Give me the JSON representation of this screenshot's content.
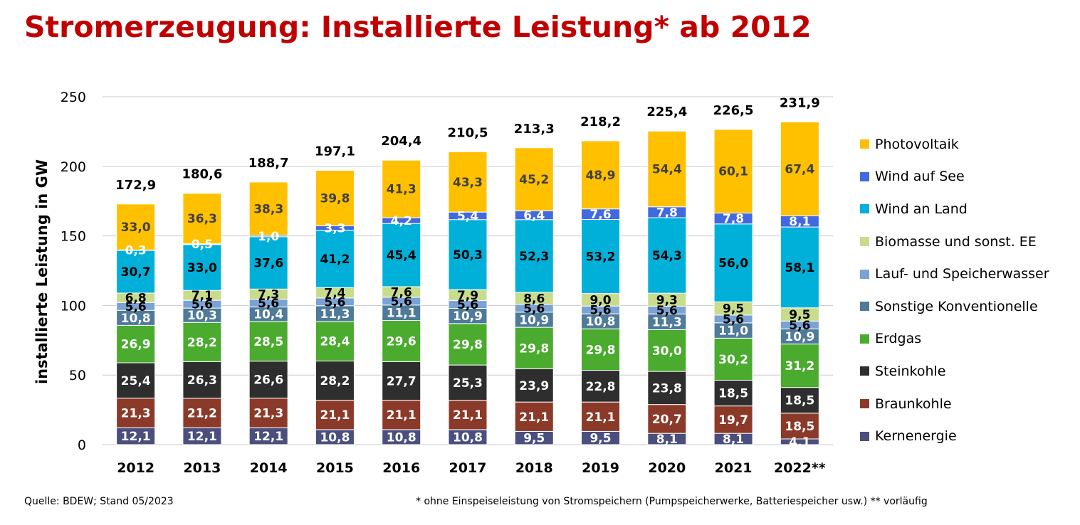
{
  "page": {
    "title": "Stromerzeugung: Installierte Leistung* ab 2012",
    "source": "Quelle: BDEW; Stand 05/2023",
    "footnote": "* ohne Einspeiseleistung von Stromspeichern (Pumpspeicherwerke, Batteriespeicher usw.)  ** vorläufig"
  },
  "chart_data": {
    "type": "bar",
    "stacked": true,
    "title": "Stromerzeugung: Installierte Leistung* ab 2012",
    "ylabel": "installierte Leistung in GW",
    "xlabel": "",
    "ylim": [
      0,
      250
    ],
    "yticks": [
      0,
      50,
      100,
      150,
      200,
      250
    ],
    "ytick_labels": [
      "0",
      "50",
      "100",
      "150",
      "200",
      "250"
    ],
    "grid": true,
    "legend_position": "right",
    "categories": [
      "2012",
      "2013",
      "2014",
      "2015",
      "2016",
      "2017",
      "2018",
      "2019",
      "2020",
      "2021",
      "2022**"
    ],
    "totals": [
      172.9,
      180.6,
      188.7,
      197.1,
      204.4,
      210.5,
      213.3,
      218.2,
      225.4,
      226.5,
      231.9
    ],
    "total_labels": [
      "172,9",
      "180,6",
      "188,7",
      "197,1",
      "204,4",
      "210,5",
      "213,3",
      "218,2",
      "225,4",
      "226,5",
      "231,9"
    ],
    "series": [
      {
        "name": "Kernenergie",
        "color": "#4a4f7e",
        "label_color": "#ffffff",
        "values": [
          12.1,
          12.1,
          12.1,
          10.8,
          10.8,
          10.8,
          9.5,
          9.5,
          8.1,
          8.1,
          4.1
        ],
        "labels": [
          "12,1",
          "12,1",
          "12,1",
          "10,8",
          "10,8",
          "10,8",
          "9,5",
          "9,5",
          "8,1",
          "8,1",
          "4,1"
        ]
      },
      {
        "name": "Braunkohle",
        "color": "#8b3a2a",
        "label_color": "#ffffff",
        "values": [
          21.3,
          21.2,
          21.3,
          21.1,
          21.1,
          21.1,
          21.1,
          21.1,
          20.7,
          19.7,
          18.5
        ],
        "labels": [
          "21,3",
          "21,2",
          "21,3",
          "21,1",
          "21,1",
          "21,1",
          "21,1",
          "21,1",
          "20,7",
          "19,7",
          "18,5"
        ]
      },
      {
        "name": "Steinkohle",
        "color": "#2e2e2e",
        "label_color": "#ffffff",
        "values": [
          25.4,
          26.3,
          26.6,
          28.2,
          27.7,
          25.3,
          23.9,
          22.8,
          23.8,
          18.5,
          18.5
        ],
        "labels": [
          "25,4",
          "26,3",
          "26,6",
          "28,2",
          "27,7",
          "25,3",
          "23,9",
          "22,8",
          "23,8",
          "18,5",
          "18,5"
        ]
      },
      {
        "name": "Erdgas",
        "color": "#4aab2e",
        "label_color": "#ffffff",
        "values": [
          26.9,
          28.2,
          28.5,
          28.4,
          29.6,
          29.8,
          29.8,
          29.8,
          30.0,
          30.2,
          31.2
        ],
        "labels": [
          "26,9",
          "28,2",
          "28,5",
          "28,4",
          "29,6",
          "29,8",
          "29,8",
          "29,8",
          "30,0",
          "30,2",
          "31,2"
        ]
      },
      {
        "name": "Sonstige Konventionelle",
        "color": "#4f7a99",
        "label_color": "#ffffff",
        "values": [
          10.8,
          10.3,
          10.4,
          11.3,
          11.1,
          10.9,
          10.9,
          10.8,
          11.3,
          11.0,
          10.9
        ],
        "labels": [
          "10,8",
          "10,3",
          "10,4",
          "11,3",
          "11,1",
          "10,9",
          "10,9",
          "10,8",
          "11,3",
          "11,0",
          "10,9"
        ]
      },
      {
        "name": "Lauf- und Speicherwasser",
        "color": "#7aa2d4",
        "label_color": "#000000",
        "values": [
          5.6,
          5.6,
          5.6,
          5.6,
          5.6,
          5.6,
          5.6,
          5.6,
          5.6,
          5.6,
          5.6
        ],
        "labels": [
          "5,6",
          "5,6",
          "5,6",
          "5,6",
          "5,6",
          "5,6",
          "5,6",
          "5,6",
          "5,6",
          "5,6",
          "5,6"
        ]
      },
      {
        "name": "Biomasse und sonst. EE",
        "color": "#c8dc8c",
        "label_color": "#000000",
        "values": [
          6.8,
          7.1,
          7.3,
          7.4,
          7.6,
          7.9,
          8.6,
          9.0,
          9.3,
          9.5,
          9.5
        ],
        "labels": [
          "6,8",
          "7,1",
          "7,3",
          "7,4",
          "7,6",
          "7,9",
          "8,6",
          "9,0",
          "9,3",
          "9,5",
          "9,5"
        ]
      },
      {
        "name": "Wind an Land",
        "color": "#00b0d8",
        "label_color": "#000000",
        "values": [
          30.7,
          33.0,
          37.6,
          41.2,
          45.4,
          50.3,
          52.3,
          53.2,
          54.3,
          56.0,
          58.1
        ],
        "labels": [
          "30,7",
          "33,0",
          "37,6",
          "41,2",
          "45,4",
          "50,3",
          "52,3",
          "53,2",
          "54,3",
          "56,0",
          "58,1"
        ]
      },
      {
        "name": "Wind auf See",
        "color": "#4169e1",
        "label_color": "#ffffff",
        "values": [
          0.3,
          0.5,
          1.0,
          3.3,
          4.2,
          5.4,
          6.4,
          7.6,
          7.8,
          7.8,
          8.1
        ],
        "labels": [
          "0,3",
          "0,5",
          "1,0",
          "3,3",
          "4,2",
          "5,4",
          "6,4",
          "7,6",
          "7,8",
          "7,8",
          "8,1"
        ]
      },
      {
        "name": "Photovoltaik",
        "color": "#ffc000",
        "label_color": "#404040",
        "values": [
          33.0,
          36.3,
          38.3,
          39.8,
          41.3,
          43.3,
          45.2,
          48.9,
          54.4,
          60.1,
          67.4
        ],
        "labels": [
          "33,0",
          "36,3",
          "38,3",
          "39,8",
          "41,3",
          "43,3",
          "45,2",
          "48,9",
          "54,4",
          "60,1",
          "67,4"
        ]
      }
    ]
  }
}
